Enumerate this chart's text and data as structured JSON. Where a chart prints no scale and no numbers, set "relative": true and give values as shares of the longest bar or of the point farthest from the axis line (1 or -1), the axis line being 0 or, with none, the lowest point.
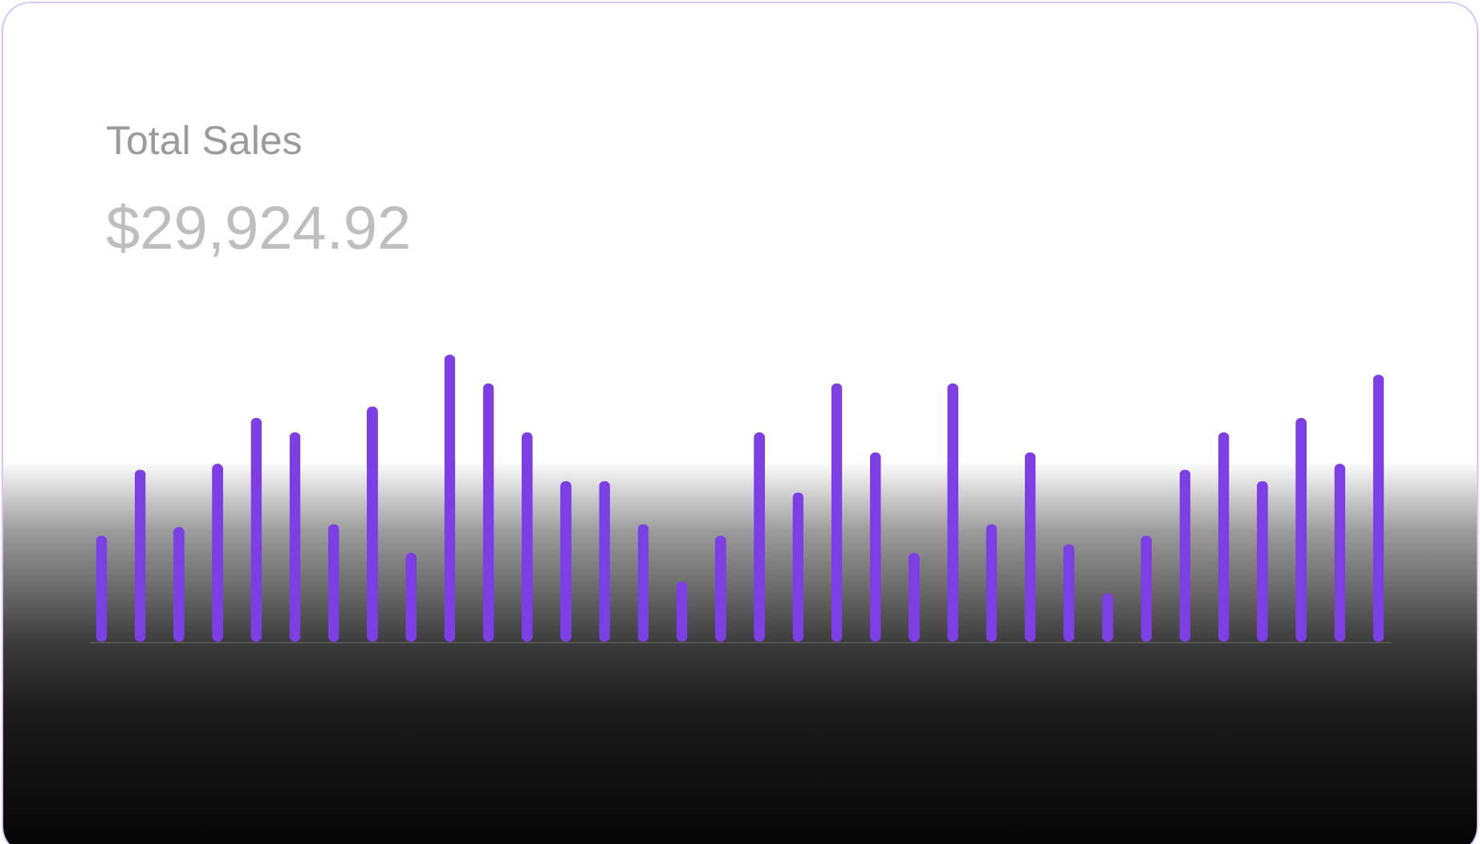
{
  "chart_data": {
    "type": "bar",
    "title": "Total Sales",
    "subtitle": "$29,924.92",
    "relative": true,
    "categories": [
      null,
      null,
      null,
      null,
      null,
      null,
      null,
      null,
      null,
      null,
      null,
      null,
      null,
      null,
      null,
      null,
      null,
      null,
      null,
      null,
      null,
      null,
      null,
      null,
      null,
      null,
      null,
      null,
      null,
      null,
      null,
      null,
      null,
      null
    ],
    "values": [
      0.37,
      0.6,
      0.4,
      0.62,
      0.78,
      0.73,
      0.41,
      0.82,
      0.31,
      1,
      0.9,
      0.73,
      0.56,
      0.56,
      0.41,
      0.21,
      0.37,
      0.73,
      0.52,
      0.9,
      0.66,
      0.31,
      0.9,
      0.41,
      0.66,
      0.34,
      0.17,
      0.37,
      0.6,
      0.73,
      0.56,
      0.78,
      0.62,
      0.93
    ],
    "color": "#7b3fe4"
  }
}
